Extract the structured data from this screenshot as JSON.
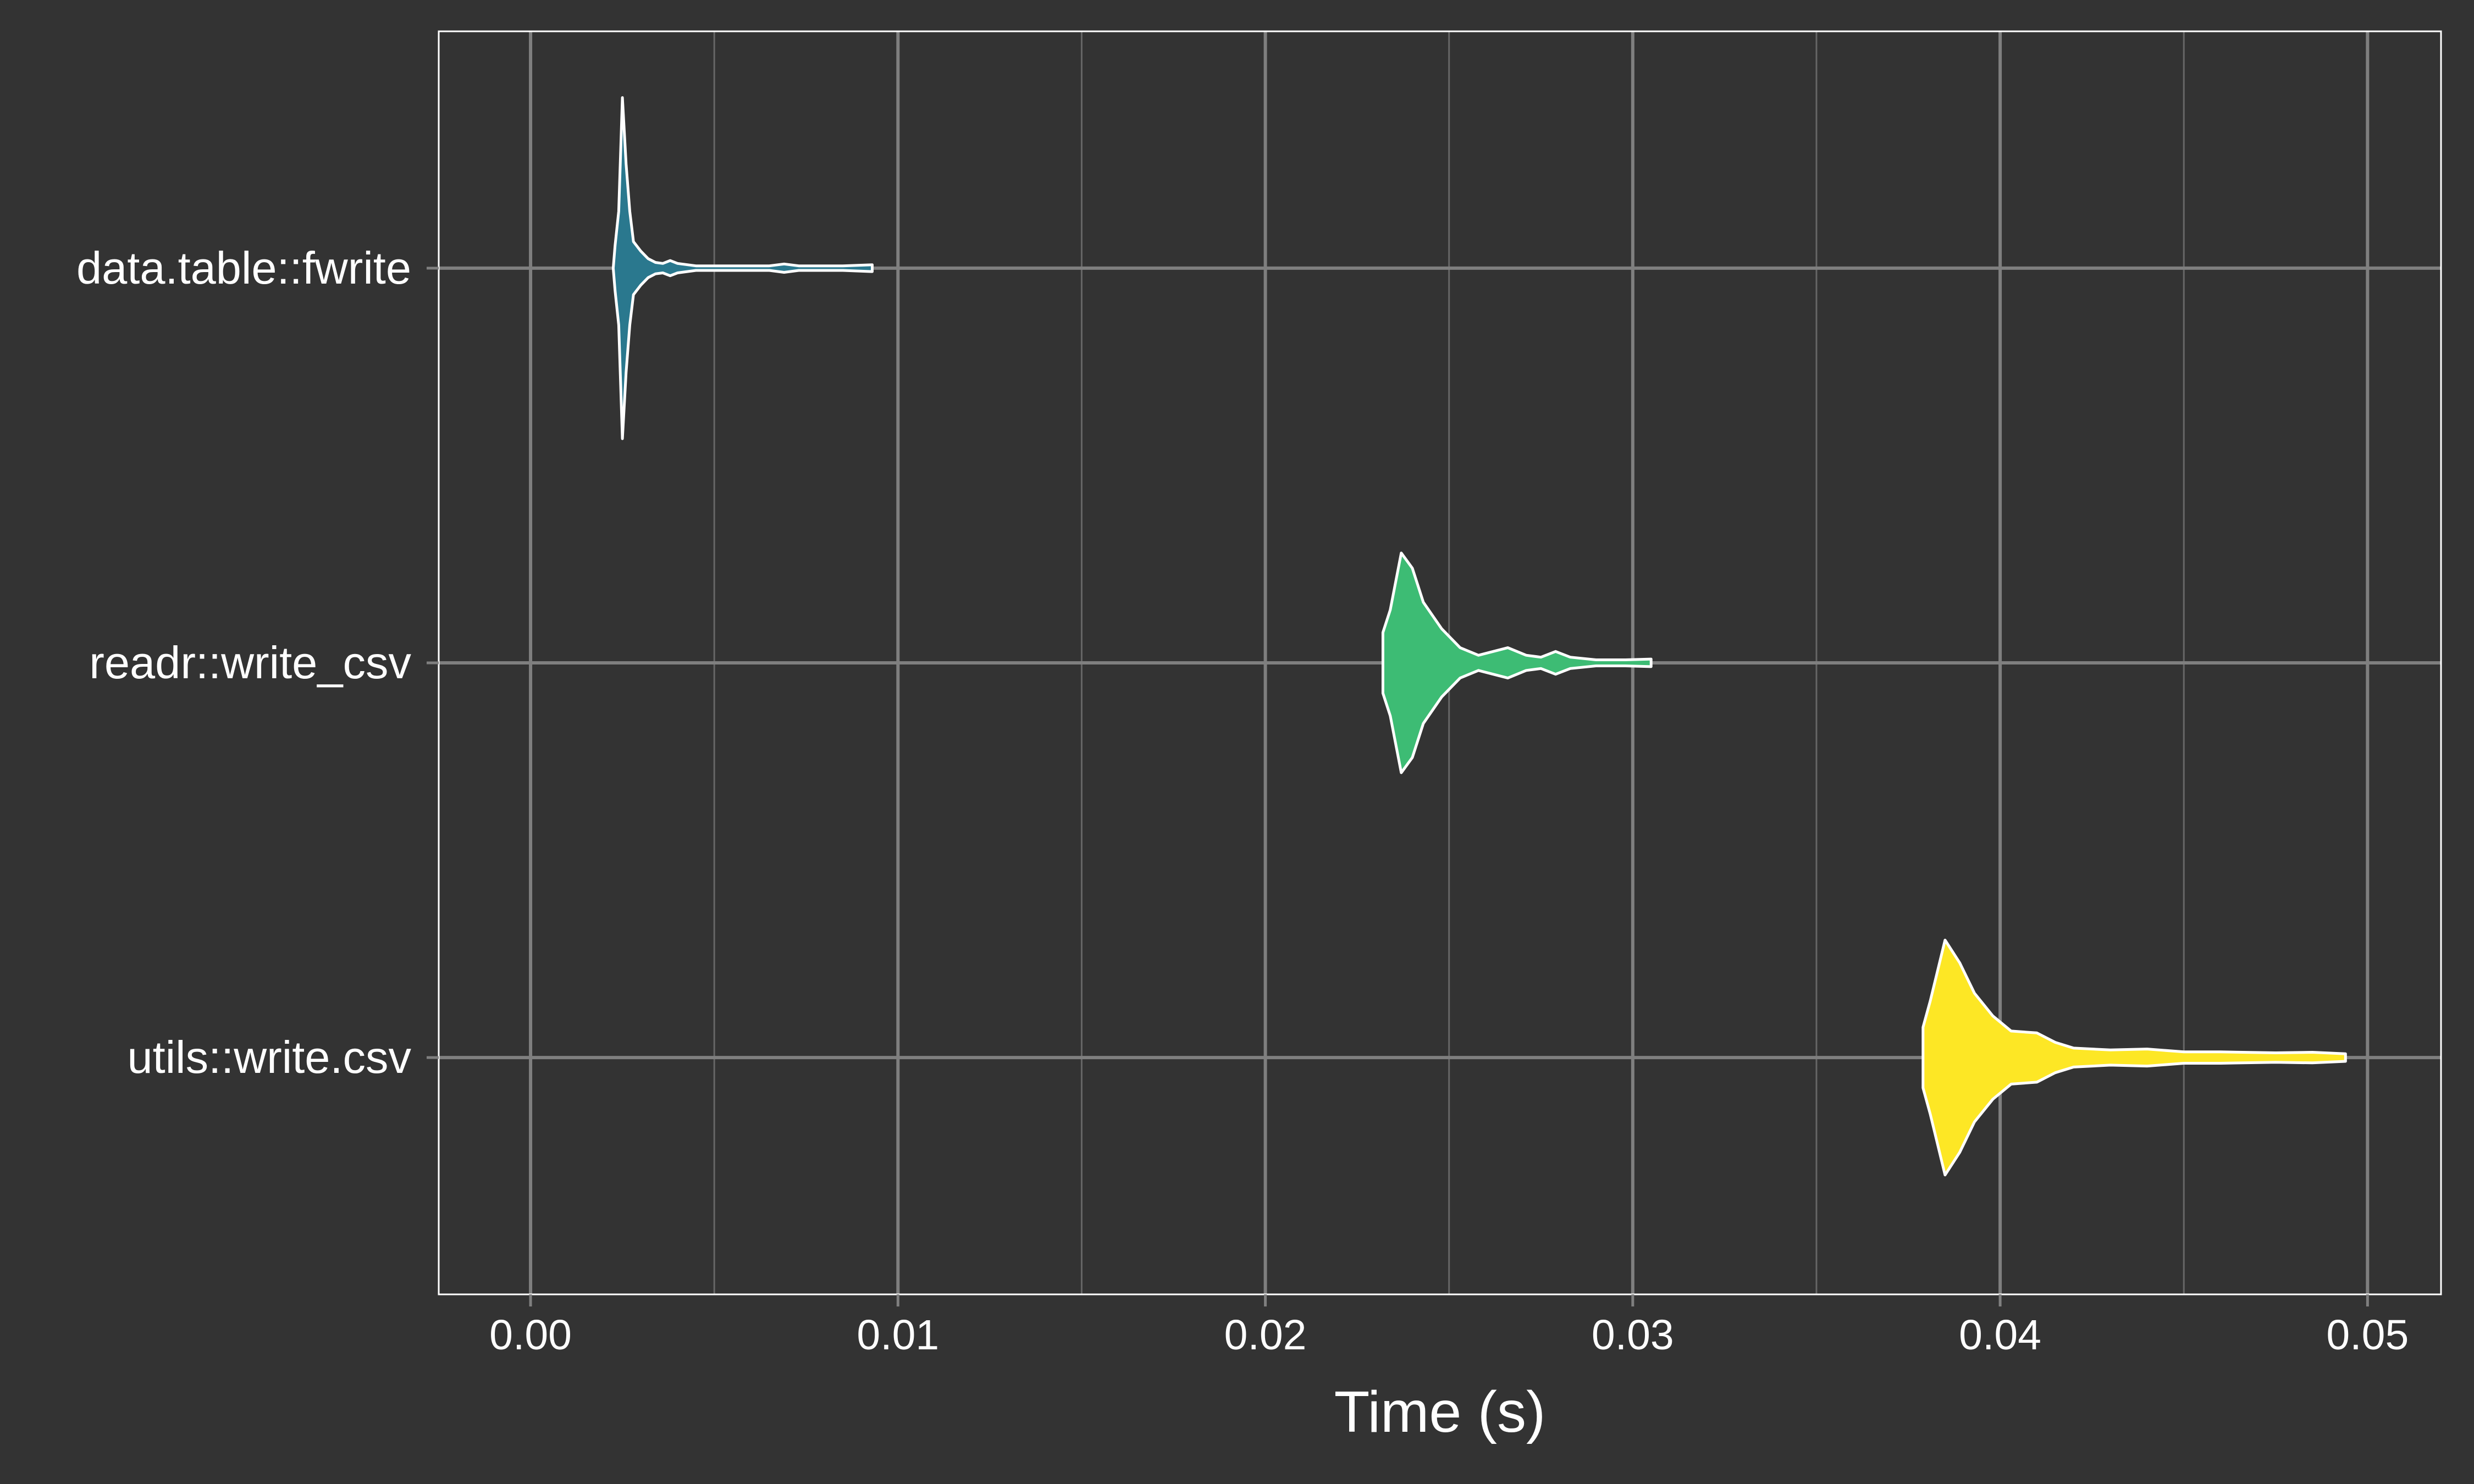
{
  "chart_data": {
    "type": "violin",
    "orientation": "horizontal",
    "xlabel": "Time (s)",
    "ylabel": "",
    "title": "",
    "xlim": [
      -0.0025,
      0.052
    ],
    "x_ticks": [
      0.0,
      0.01,
      0.02,
      0.03,
      0.04,
      0.05
    ],
    "x_tick_labels": [
      "0.00",
      "0.01",
      "0.02",
      "0.03",
      "0.04",
      "0.05"
    ],
    "x_minor_ticks": [
      0.005,
      0.015,
      0.025,
      0.035,
      0.045
    ],
    "grid": true,
    "legend": "none",
    "colors": {
      "background": "#333333",
      "grid_major": "#7f7f7f",
      "grid_minor": "#666666",
      "panel_border": "#ffffff",
      "outline": "#ffffff"
    },
    "categories": [
      "data.table::fwrite",
      "readr::write_csv",
      "utils::write.csv"
    ],
    "series": [
      {
        "name": "data.table::fwrite",
        "color": "#2a788e",
        "min": 0.0023,
        "max": 0.0093,
        "profile": [
          [
            0.00225,
            0.0
          ],
          [
            0.0023,
            0.12
          ],
          [
            0.0024,
            0.3
          ],
          [
            0.0025,
            0.9
          ],
          [
            0.0026,
            0.55
          ],
          [
            0.0027,
            0.3
          ],
          [
            0.0028,
            0.14
          ],
          [
            0.003,
            0.09
          ],
          [
            0.0032,
            0.05
          ],
          [
            0.0034,
            0.03
          ],
          [
            0.0036,
            0.025
          ],
          [
            0.0038,
            0.04
          ],
          [
            0.004,
            0.025
          ],
          [
            0.0045,
            0.012
          ],
          [
            0.0055,
            0.012
          ],
          [
            0.0065,
            0.012
          ],
          [
            0.0069,
            0.022
          ],
          [
            0.0073,
            0.012
          ],
          [
            0.0085,
            0.012
          ],
          [
            0.0093,
            0.018
          ]
        ]
      },
      {
        "name": "readr::write_csv",
        "color": "#3dbc74",
        "min": 0.0232,
        "max": 0.0305,
        "profile": [
          [
            0.0232,
            0.16
          ],
          [
            0.0234,
            0.28
          ],
          [
            0.0237,
            0.58
          ],
          [
            0.024,
            0.5
          ],
          [
            0.0243,
            0.32
          ],
          [
            0.0248,
            0.18
          ],
          [
            0.0253,
            0.08
          ],
          [
            0.0258,
            0.04
          ],
          [
            0.0262,
            0.06
          ],
          [
            0.0266,
            0.08
          ],
          [
            0.0271,
            0.04
          ],
          [
            0.0275,
            0.03
          ],
          [
            0.0279,
            0.06
          ],
          [
            0.0283,
            0.03
          ],
          [
            0.029,
            0.016
          ],
          [
            0.0298,
            0.016
          ],
          [
            0.0305,
            0.02
          ]
        ]
      },
      {
        "name": "utils::write.csv",
        "color": "#fde725",
        "min": 0.0379,
        "max": 0.0494,
        "profile": [
          [
            0.0379,
            0.16
          ],
          [
            0.0381,
            0.3
          ],
          [
            0.0385,
            0.62
          ],
          [
            0.0389,
            0.5
          ],
          [
            0.0393,
            0.34
          ],
          [
            0.0398,
            0.22
          ],
          [
            0.0403,
            0.14
          ],
          [
            0.041,
            0.13
          ],
          [
            0.0415,
            0.08
          ],
          [
            0.042,
            0.05
          ],
          [
            0.043,
            0.04
          ],
          [
            0.044,
            0.045
          ],
          [
            0.045,
            0.03
          ],
          [
            0.046,
            0.03
          ],
          [
            0.0475,
            0.025
          ],
          [
            0.0485,
            0.028
          ],
          [
            0.0494,
            0.02
          ]
        ]
      }
    ]
  }
}
